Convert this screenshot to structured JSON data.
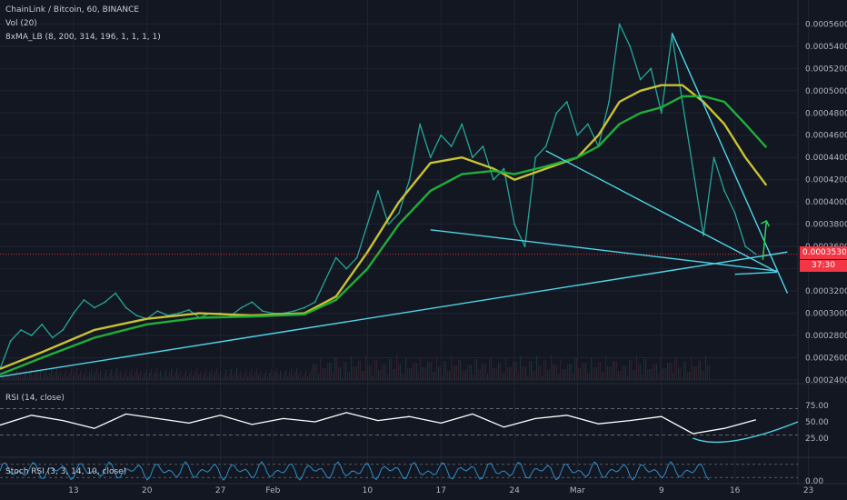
{
  "header": {
    "symbol_line": "ChainLink / Bitcoin, 60, BINANCE",
    "vol_line": "Vol (20)",
    "ma_line": "8xMA_LB (8, 200, 314, 196, 1, 1, 1, 1)"
  },
  "panes": {
    "rsi_label": "RSI (14, close)",
    "stoch_label": "Stoch RSI (3, 3, 14, 10, close)"
  },
  "price_tag": {
    "value": "0.00035307",
    "countdown": "37:30"
  },
  "colors": {
    "background": "#131722",
    "grid": "#1f2433",
    "price_line": "#26a69a",
    "ma_fast": "#c8c232",
    "ma_slow": "#1fae3a",
    "trendline": "#4fd5e8",
    "arrow": "#2bd25a",
    "rsi": "#ffffff",
    "stoch": "#2f8fc9",
    "last_price": "#f23645"
  },
  "chart_data": {
    "type": "line",
    "x_axis": {
      "unit": "day",
      "range": [
        6,
        82
      ],
      "tick_labels": [
        "13",
        "20",
        "27",
        "Feb",
        "10",
        "17",
        "24",
        "Mar",
        "9",
        "16",
        "23"
      ],
      "tick_days": [
        13,
        20,
        27,
        32,
        41,
        48,
        55,
        61,
        69,
        76,
        83
      ]
    },
    "y_axis": {
      "range": [
        0.00024,
        0.000575
      ],
      "tick_labels": [
        "0.00056000",
        "0.00054000",
        "0.00052000",
        "0.00050000",
        "0.00048000",
        "0.00046000",
        "0.00044000",
        "0.00042000",
        "0.00040000",
        "0.00038000",
        "0.00036000",
        "0.00034000",
        "0.00032000",
        "0.00030000",
        "0.00028000",
        "0.00026000",
        "0.00024000"
      ],
      "tick_values": [
        0.00056,
        0.00054,
        0.00052,
        0.0005,
        0.00048,
        0.00046,
        0.00044,
        0.00042,
        0.0004,
        0.00038,
        0.00036,
        0.00034,
        0.00032,
        0.0003,
        0.00028,
        0.00026,
        0.00024
      ]
    },
    "series": [
      {
        "kind": "price",
        "x": [
          6,
          7,
          8,
          9,
          10,
          11,
          12,
          13,
          14,
          15,
          16,
          17,
          18,
          19,
          20,
          21,
          22,
          23,
          24,
          25,
          26,
          27,
          28,
          29,
          30,
          31,
          32,
          33,
          34,
          35,
          36,
          37,
          38,
          39,
          40,
          41,
          42,
          43,
          44,
          45,
          46,
          47,
          48,
          49,
          50,
          51,
          52,
          53,
          54,
          55,
          56,
          57,
          58,
          59,
          60,
          61,
          62,
          63,
          64,
          65,
          66,
          67,
          68,
          69,
          70,
          71,
          72,
          73,
          74,
          75,
          76,
          77,
          78
        ],
        "y": [
          0.00025,
          0.000275,
          0.000285,
          0.00028,
          0.00029,
          0.000278,
          0.000285,
          0.0003,
          0.000312,
          0.000305,
          0.00031,
          0.000318,
          0.000305,
          0.000298,
          0.000295,
          0.000302,
          0.000298,
          0.0003,
          0.000303,
          0.000296,
          0.0003,
          0.0003,
          0.000298,
          0.000305,
          0.00031,
          0.000302,
          0.0003,
          0.0003,
          0.000302,
          0.000305,
          0.00031,
          0.00033,
          0.00035,
          0.00034,
          0.00035,
          0.00038,
          0.00041,
          0.00038,
          0.00039,
          0.00042,
          0.00047,
          0.00044,
          0.00046,
          0.00045,
          0.00047,
          0.00044,
          0.00045,
          0.00042,
          0.00043,
          0.00038,
          0.00036,
          0.00044,
          0.00045,
          0.00048,
          0.00049,
          0.00046,
          0.00047,
          0.00045,
          0.00049,
          0.00056,
          0.00054,
          0.00051,
          0.00052,
          0.00048,
          0.00055,
          0.00049,
          0.00043,
          0.00037,
          0.00044,
          0.00041,
          0.00039,
          0.00036,
          0.000353
        ]
      },
      {
        "kind": "ma-fast",
        "x": [
          6,
          10,
          15,
          20,
          25,
          30,
          35,
          38,
          41,
          44,
          47,
          50,
          53,
          55,
          58,
          61,
          63,
          65,
          67,
          69,
          71,
          73,
          75,
          77,
          79
        ],
        "y": [
          0.00025,
          0.000265,
          0.000285,
          0.000295,
          0.0003,
          0.000298,
          0.0003,
          0.000315,
          0.000355,
          0.0004,
          0.000435,
          0.00044,
          0.00043,
          0.00042,
          0.00043,
          0.00044,
          0.00046,
          0.00049,
          0.0005,
          0.000505,
          0.000505,
          0.00049,
          0.00047,
          0.00044,
          0.000415
        ]
      },
      {
        "kind": "ma-slow",
        "x": [
          6,
          10,
          15,
          20,
          25,
          30,
          35,
          38,
          41,
          44,
          47,
          50,
          53,
          55,
          58,
          61,
          63,
          65,
          67,
          69,
          71,
          73,
          75,
          77,
          79
        ],
        "y": [
          0.000245,
          0.00026,
          0.000278,
          0.00029,
          0.000296,
          0.000297,
          0.000299,
          0.000312,
          0.00034,
          0.00038,
          0.00041,
          0.000425,
          0.000428,
          0.000425,
          0.000432,
          0.00044,
          0.00045,
          0.00047,
          0.00048,
          0.000485,
          0.000495,
          0.000495,
          0.00049,
          0.00047,
          0.000449
        ]
      }
    ],
    "trendlines": [
      {
        "x": [
          6,
          81
        ],
        "y": [
          0.000243,
          0.000355
        ]
      },
      {
        "x": [
          47,
          80
        ],
        "y": [
          0.000375,
          0.000338
        ]
      },
      {
        "x": [
          58,
          80
        ],
        "y": [
          0.000446,
          0.000337
        ]
      },
      {
        "x": [
          70,
          81
        ],
        "y": [
          0.000552,
          0.000318
        ]
      },
      {
        "x": [
          76,
          80
        ],
        "y": [
          0.000335,
          0.000337
        ]
      }
    ],
    "rsi": {
      "range": [
        0,
        100
      ],
      "tick_labels": [
        "75.00",
        "50.00",
        "25.00"
      ],
      "tick_values": [
        75,
        50,
        25
      ],
      "bands": [
        70,
        30
      ],
      "x": [
        6,
        9,
        12,
        15,
        18,
        21,
        24,
        27,
        30,
        33,
        36,
        39,
        42,
        45,
        48,
        51,
        54,
        57,
        60,
        63,
        66,
        69,
        72,
        75,
        78
      ],
      "y": [
        45,
        60,
        52,
        40,
        62,
        55,
        48,
        60,
        46,
        55,
        50,
        64,
        52,
        58,
        48,
        62,
        42,
        55,
        60,
        47,
        52,
        58,
        32,
        40,
        53
      ]
    },
    "stoch_rsi": {
      "range": [
        0,
        100
      ],
      "tick_labels": [
        "0.00"
      ],
      "tick_values": [
        0
      ],
      "bands": [
        80,
        20
      ]
    }
  }
}
